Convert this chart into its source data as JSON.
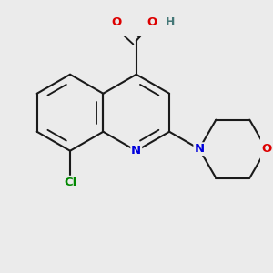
{
  "background_color": "#ebebeb",
  "bond_color": "#1a1a1a",
  "bond_width": 1.5,
  "atom_colors": {
    "N": "#0000dd",
    "O": "#dd0000",
    "Cl": "#008800",
    "H": "#447777"
  },
  "font_size": 9.5,
  "fig_size": [
    3.0,
    3.0
  ],
  "dpi": 100,
  "BL": 0.4,
  "xlim": [
    -1.4,
    1.3
  ],
  "ylim": [
    -0.9,
    1.2
  ]
}
